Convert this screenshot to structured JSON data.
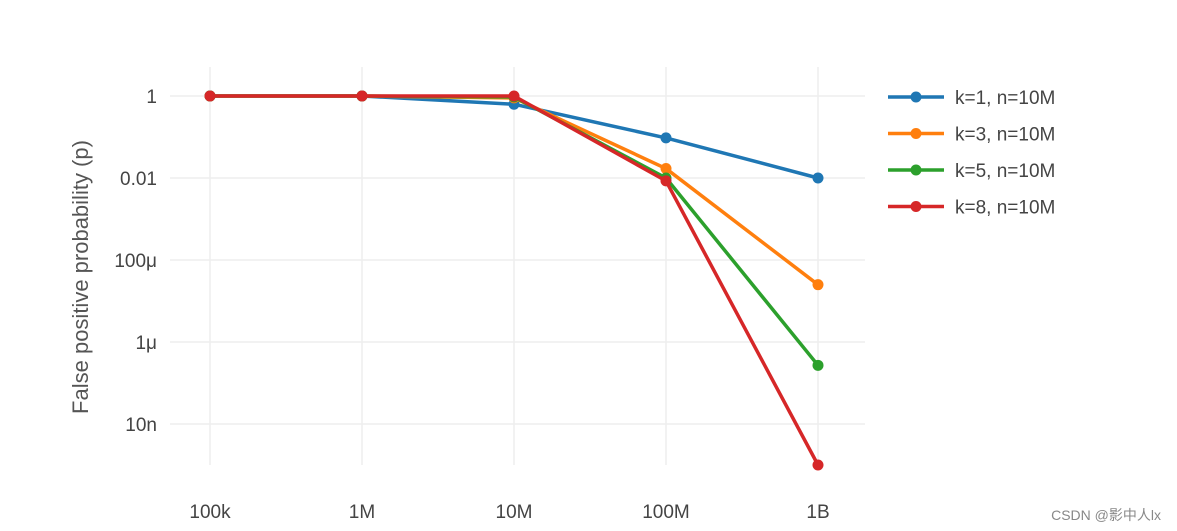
{
  "chart_data": {
    "type": "line",
    "ylabel": "False positive probability (p)",
    "xlabel": "",
    "x_scale": "log",
    "y_scale": "log",
    "categories": [
      "100k",
      "1M",
      "10M",
      "100M",
      "1B"
    ],
    "x": [
      100000,
      1000000,
      10000000,
      100000000,
      1000000000
    ],
    "y_ticks": [
      {
        "value": 1,
        "label": "1"
      },
      {
        "value": 0.01,
        "label": "0.01"
      },
      {
        "value": 0.0001,
        "label": "100μ"
      },
      {
        "value": 1e-06,
        "label": "1μ"
      },
      {
        "value": 1e-08,
        "label": "10n"
      }
    ],
    "ylim": [
      1e-09,
      5
    ],
    "grid": true,
    "legend_position": "right",
    "series": [
      {
        "name": "k=1, n=10M",
        "color": "#1f77b4",
        "values": [
          1,
          1,
          0.63,
          0.095,
          0.01
        ]
      },
      {
        "name": "k=3, n=10M",
        "color": "#ff7f0e",
        "values": [
          1,
          1,
          0.9,
          0.017,
          2.5e-05
        ]
      },
      {
        "name": "k=5, n=10M",
        "color": "#2ca02c",
        "values": [
          1,
          1,
          0.95,
          0.01,
          2.7e-07
        ]
      },
      {
        "name": "k=8, n=10M",
        "color": "#d62728",
        "values": [
          1,
          1,
          1,
          0.0085,
          1e-09
        ]
      }
    ]
  },
  "watermark": "CSDN @影中人lx"
}
